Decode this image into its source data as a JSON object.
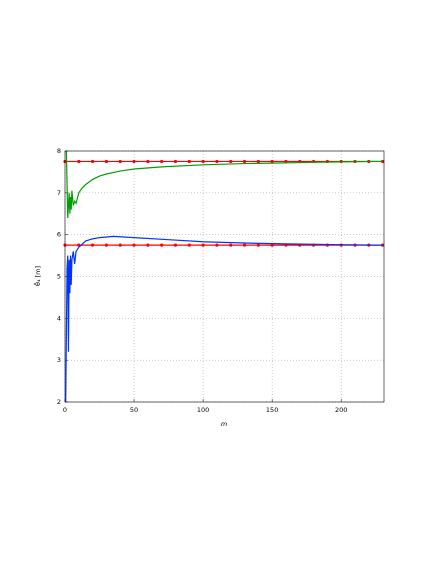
{
  "chart_data": {
    "type": "line",
    "xlabel": "m",
    "ylabel": "θ̂₄ [m]",
    "xlim": [
      0,
      231
    ],
    "ylim": [
      2,
      8
    ],
    "xticks": [
      0,
      50,
      100,
      150,
      200
    ],
    "yticks": [
      2,
      3,
      4,
      5,
      6,
      7,
      8
    ],
    "grid": true,
    "series": [
      {
        "color": "#ff0000",
        "markers": true,
        "x": [
          0,
          10,
          20,
          30,
          40,
          50,
          60,
          70,
          80,
          90,
          100,
          110,
          120,
          130,
          140,
          150,
          160,
          170,
          180,
          190,
          200,
          210,
          220,
          230
        ],
        "values": [
          7.75,
          7.75,
          7.75,
          7.75,
          7.75,
          7.75,
          7.75,
          7.75,
          7.75,
          7.75,
          7.75,
          7.75,
          7.75,
          7.75,
          7.75,
          7.75,
          7.75,
          7.75,
          7.75,
          7.75,
          7.75,
          7.75,
          7.75,
          7.75
        ]
      },
      {
        "color": "#ff0000",
        "markers": true,
        "x": [
          0,
          10,
          20,
          30,
          40,
          50,
          60,
          70,
          80,
          90,
          100,
          110,
          120,
          130,
          140,
          150,
          160,
          170,
          180,
          190,
          200,
          210,
          220,
          230
        ],
        "values": [
          5.75,
          5.75,
          5.75,
          5.75,
          5.75,
          5.75,
          5.75,
          5.75,
          5.75,
          5.75,
          5.75,
          5.75,
          5.75,
          5.75,
          5.75,
          5.75,
          5.75,
          5.75,
          5.75,
          5.75,
          5.75,
          5.75,
          5.75,
          5.75
        ]
      },
      {
        "color": "#00a000",
        "markers": false,
        "x": [
          1,
          2,
          3,
          3.5,
          4,
          4.5,
          5,
          6,
          7,
          8,
          10,
          12,
          15,
          20,
          25,
          30,
          40,
          50,
          70,
          100,
          130,
          150,
          180,
          200,
          225,
          230
        ],
        "values": [
          8,
          6.4,
          7.0,
          6.5,
          6.9,
          6.6,
          7.05,
          6.7,
          6.8,
          6.75,
          7.0,
          7.1,
          7.2,
          7.32,
          7.4,
          7.45,
          7.52,
          7.57,
          7.62,
          7.67,
          7.7,
          7.71,
          7.73,
          7.74,
          7.75,
          7.75
        ]
      },
      {
        "color": "#0033ff",
        "markers": false,
        "x": [
          0.5,
          1.5,
          2,
          2.5,
          3,
          3.5,
          4,
          4.5,
          5,
          6,
          7,
          8,
          10,
          15,
          20,
          25,
          35,
          50,
          75,
          100,
          130,
          160,
          200,
          225,
          230
        ],
        "values": [
          2,
          5.2,
          5.5,
          3.2,
          5.4,
          4.6,
          5.5,
          4.8,
          5.4,
          5.6,
          5.3,
          5.6,
          5.7,
          5.85,
          5.9,
          5.93,
          5.96,
          5.93,
          5.88,
          5.83,
          5.8,
          5.78,
          5.76,
          5.75,
          5.75
        ]
      }
    ]
  }
}
